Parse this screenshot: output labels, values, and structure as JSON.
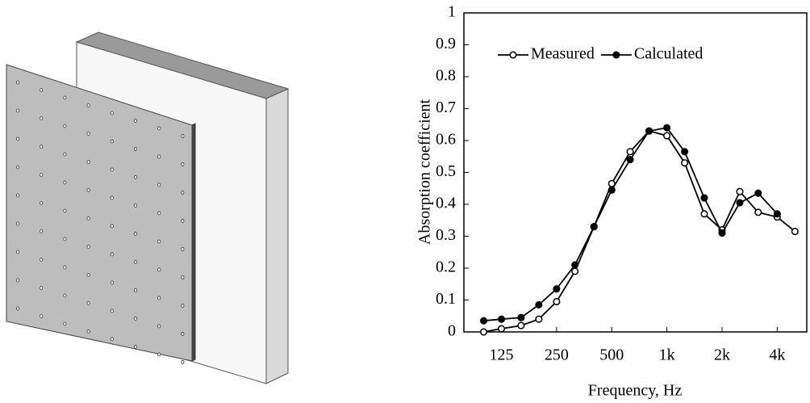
{
  "chart_data": {
    "type": "line",
    "x": [
      100,
      125,
      160,
      200,
      250,
      315,
      400,
      500,
      630,
      800,
      1000,
      1250,
      1600,
      2000,
      2500,
      3150,
      4000,
      5000
    ],
    "series": [
      {
        "name": "Measured",
        "color": "#000000",
        "marker_face": "#ffffff",
        "values": [
          0.0,
          0.01,
          0.02,
          0.04,
          0.095,
          0.19,
          0.33,
          0.465,
          0.565,
          0.63,
          0.615,
          0.53,
          0.37,
          0.32,
          0.44,
          0.375,
          0.36,
          0.315
        ]
      },
      {
        "name": "Calculated",
        "color": "#000000",
        "marker_face": "#000000",
        "values": [
          0.035,
          0.04,
          0.045,
          0.085,
          0.135,
          0.21,
          0.33,
          0.445,
          0.54,
          0.63,
          0.64,
          0.565,
          0.42,
          0.31,
          0.405,
          0.435,
          0.37,
          null
        ]
      }
    ],
    "xlabel": "Frequency, Hz",
    "ylabel": "Absorption coefficient",
    "xscale": "log",
    "xlim": [
      78,
      5800
    ],
    "ylim": [
      0,
      1
    ],
    "xticks": [
      125,
      250,
      500,
      {
        "value": 1000,
        "label": "1k"
      },
      {
        "value": 2000,
        "label": "2k"
      },
      {
        "value": 4000,
        "label": "4k"
      }
    ],
    "yticks": [
      0,
      0.1,
      0.2,
      0.3,
      0.4,
      0.5,
      0.6,
      0.7,
      0.8,
      0.9,
      1
    ],
    "legend": "upper left"
  }
}
